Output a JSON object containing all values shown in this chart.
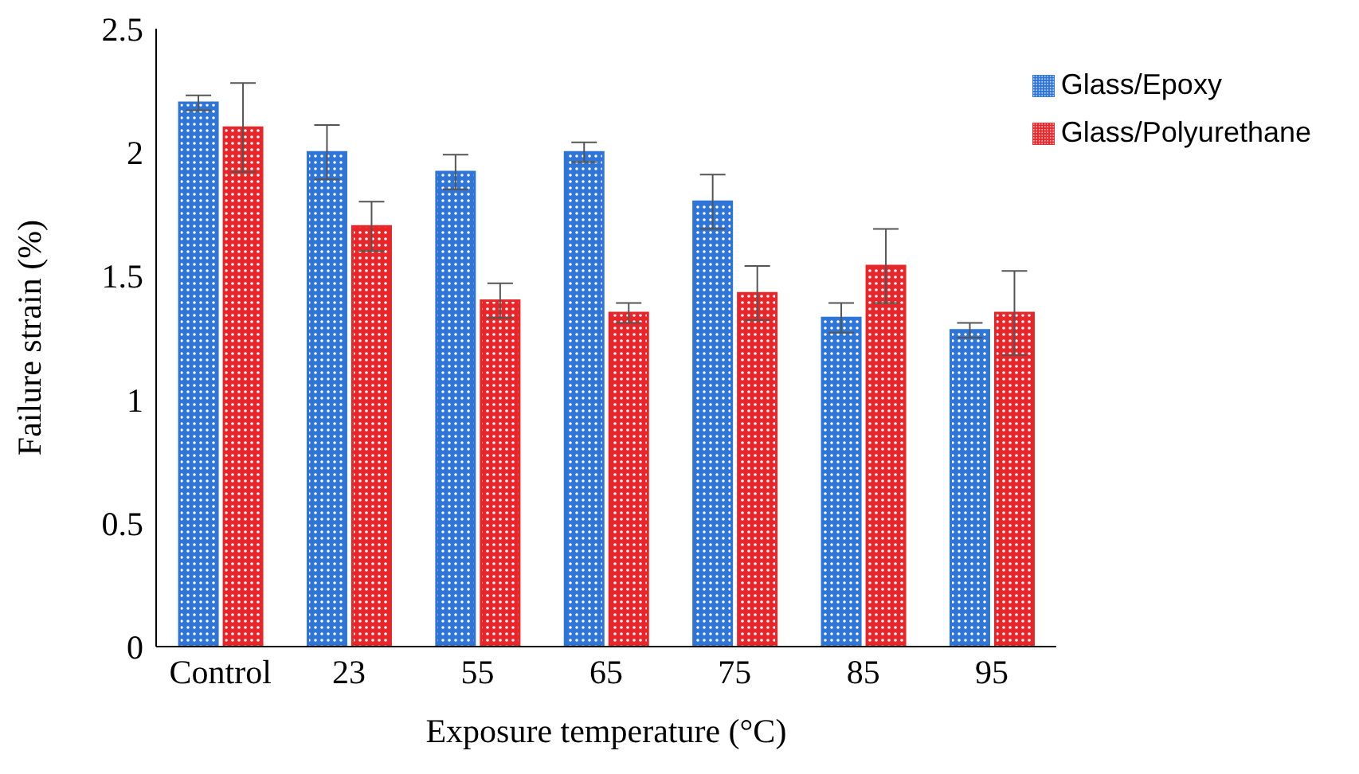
{
  "chart_data": {
    "type": "bar",
    "xlabel": "Exposure temperature (°C)",
    "ylabel": "Failure strain (%)",
    "categories": [
      "Control",
      "23",
      "55",
      "65",
      "75",
      "85",
      "95"
    ],
    "series": [
      {
        "name": "Glass/Epoxy",
        "color": "#2e75d6",
        "values": [
          2.2,
          2.0,
          1.92,
          2.0,
          1.8,
          1.33,
          1.28
        ],
        "errors": [
          0.03,
          0.11,
          0.07,
          0.04,
          0.11,
          0.06,
          0.03
        ]
      },
      {
        "name": "Glass/Polyurethane",
        "color": "#e8262a",
        "values": [
          2.1,
          1.7,
          1.4,
          1.35,
          1.43,
          1.54,
          1.35
        ],
        "errors": [
          0.18,
          0.1,
          0.07,
          0.04,
          0.11,
          0.15,
          0.17
        ]
      }
    ],
    "ylim": [
      0,
      2.5
    ],
    "yticks": [
      0,
      0.5,
      1,
      1.5,
      2,
      2.5
    ],
    "grid": false,
    "legend": "top right"
  }
}
